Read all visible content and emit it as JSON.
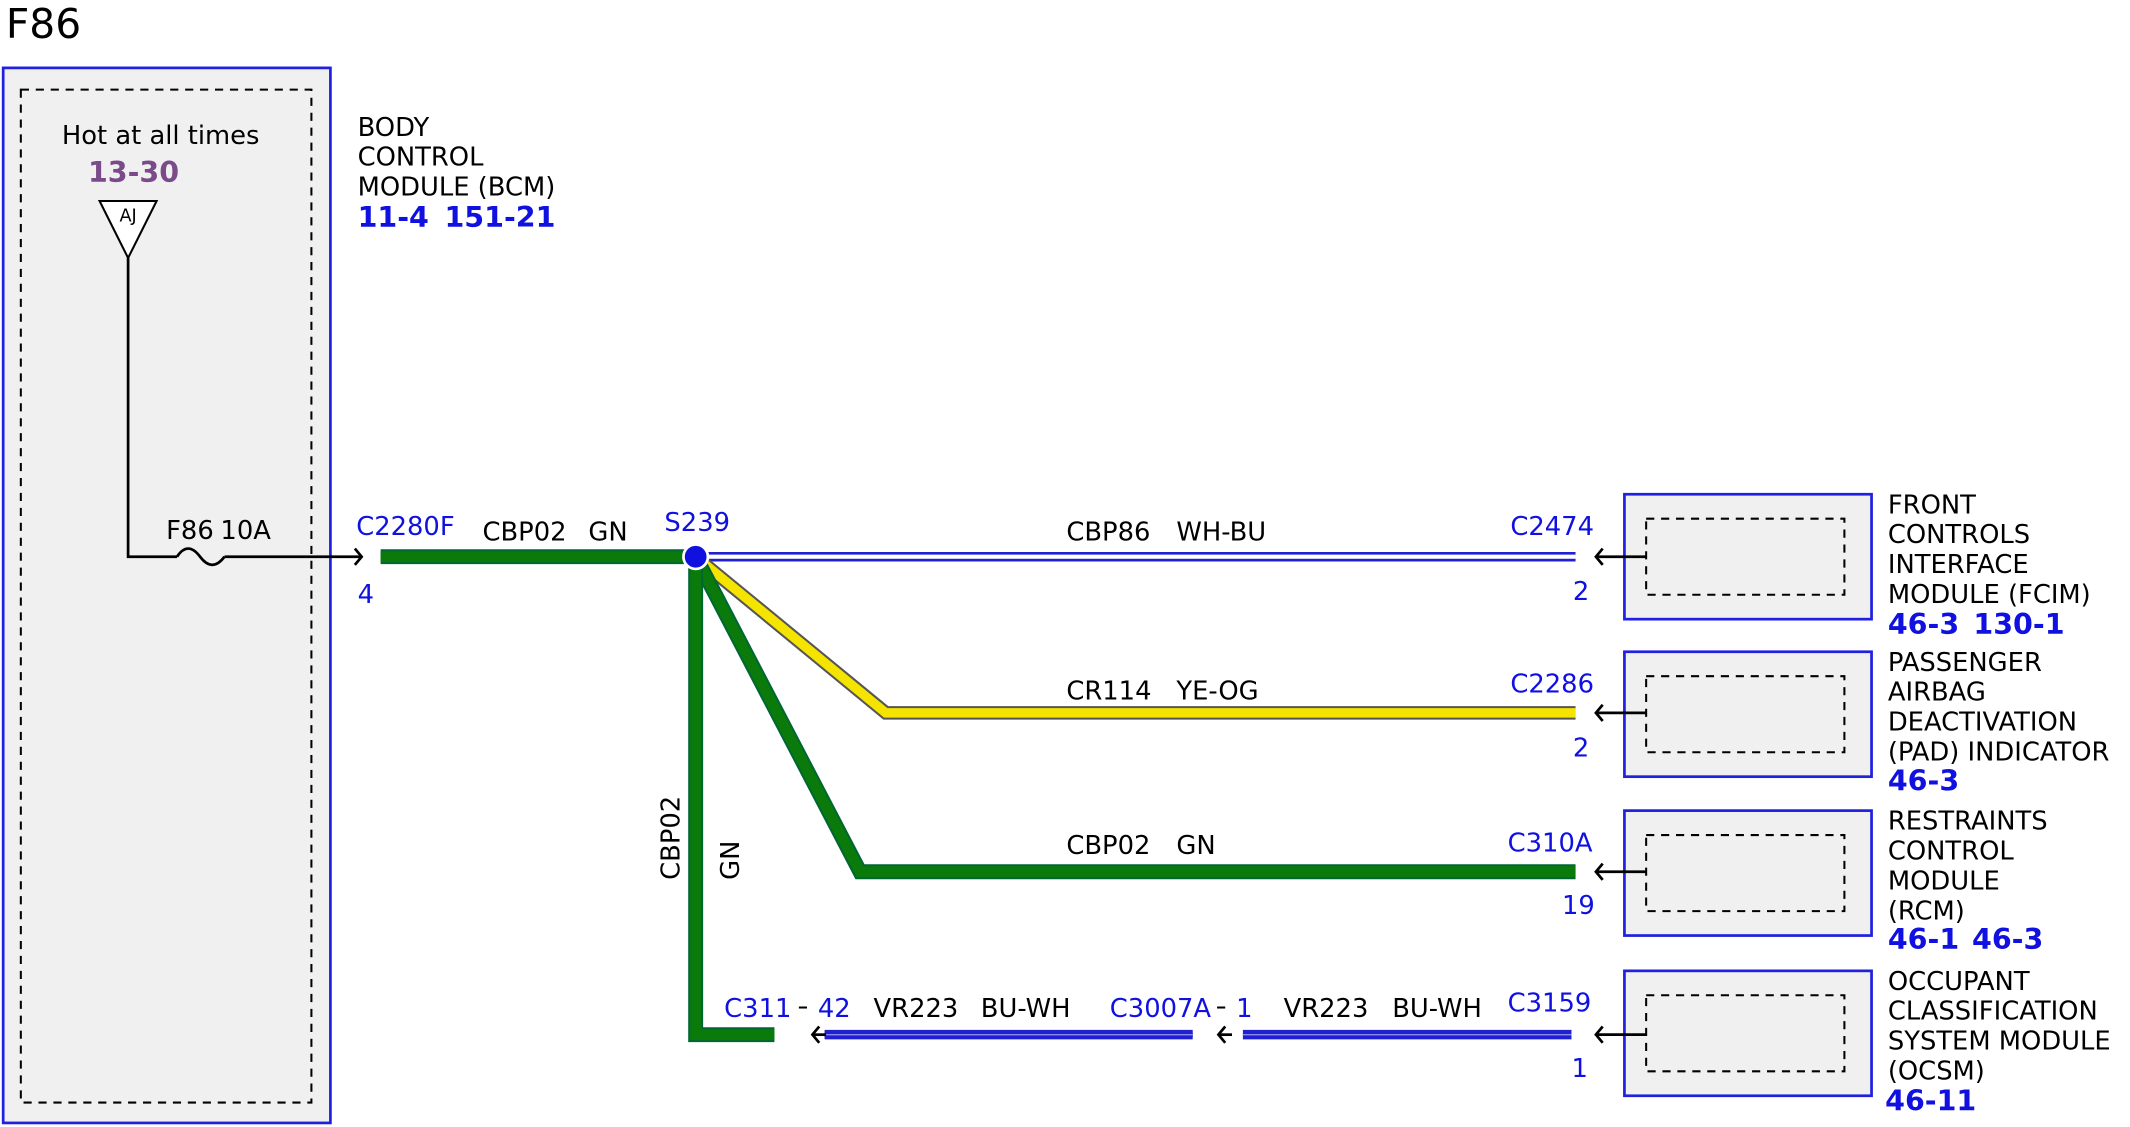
{
  "title": "F86",
  "source": {
    "note": "Hot at all times",
    "ref": "13-30",
    "symbol": "AJ",
    "name": [
      "BODY",
      "CONTROL",
      "MODULE (BCM)"
    ],
    "refs": [
      "11-4",
      "151-21"
    ],
    "fuse": "F86",
    "fuse_rating": "10A",
    "connector": "C2280F",
    "pin": "4"
  },
  "splice": "S239",
  "wires": [
    {
      "circuit": "CBP02",
      "color": "GN"
    },
    {
      "circuit": "CBP86",
      "color": "WH-BU"
    },
    {
      "circuit": "CR114",
      "color": "YE-OG"
    },
    {
      "circuit": "CBP02",
      "color": "GN"
    },
    {
      "circuit": "CBP02",
      "color": "GN"
    },
    {
      "circuit": "VR223",
      "color": "BU-WH"
    },
    {
      "circuit": "VR223",
      "color": "BU-WH"
    }
  ],
  "inline_connectors": [
    {
      "connector": "C311",
      "pin": "42"
    },
    {
      "connector": "C3007A",
      "pin": "1"
    }
  ],
  "modules": [
    {
      "connector": "C2474",
      "pin": "2",
      "name": [
        "FRONT",
        "CONTROLS",
        "INTERFACE",
        "MODULE (FCIM)"
      ],
      "refs": [
        "46-3",
        "130-1"
      ]
    },
    {
      "connector": "C2286",
      "pin": "2",
      "name": [
        "PASSENGER",
        "AIRBAG",
        "DEACTIVATION",
        "(PAD) INDICATOR"
      ],
      "refs": [
        "46-3"
      ]
    },
    {
      "connector": "C310A",
      "pin": "19",
      "name": [
        "RESTRAINTS",
        "CONTROL",
        "MODULE",
        "(RCM)"
      ],
      "refs": [
        "46-1",
        "46-3"
      ]
    },
    {
      "connector": "C3159",
      "pin": "1",
      "name": [
        "OCCUPANT",
        "CLASSIFICATION",
        "SYSTEM MODULE",
        "(OCSM)"
      ],
      "refs": [
        "46-11"
      ]
    }
  ]
}
